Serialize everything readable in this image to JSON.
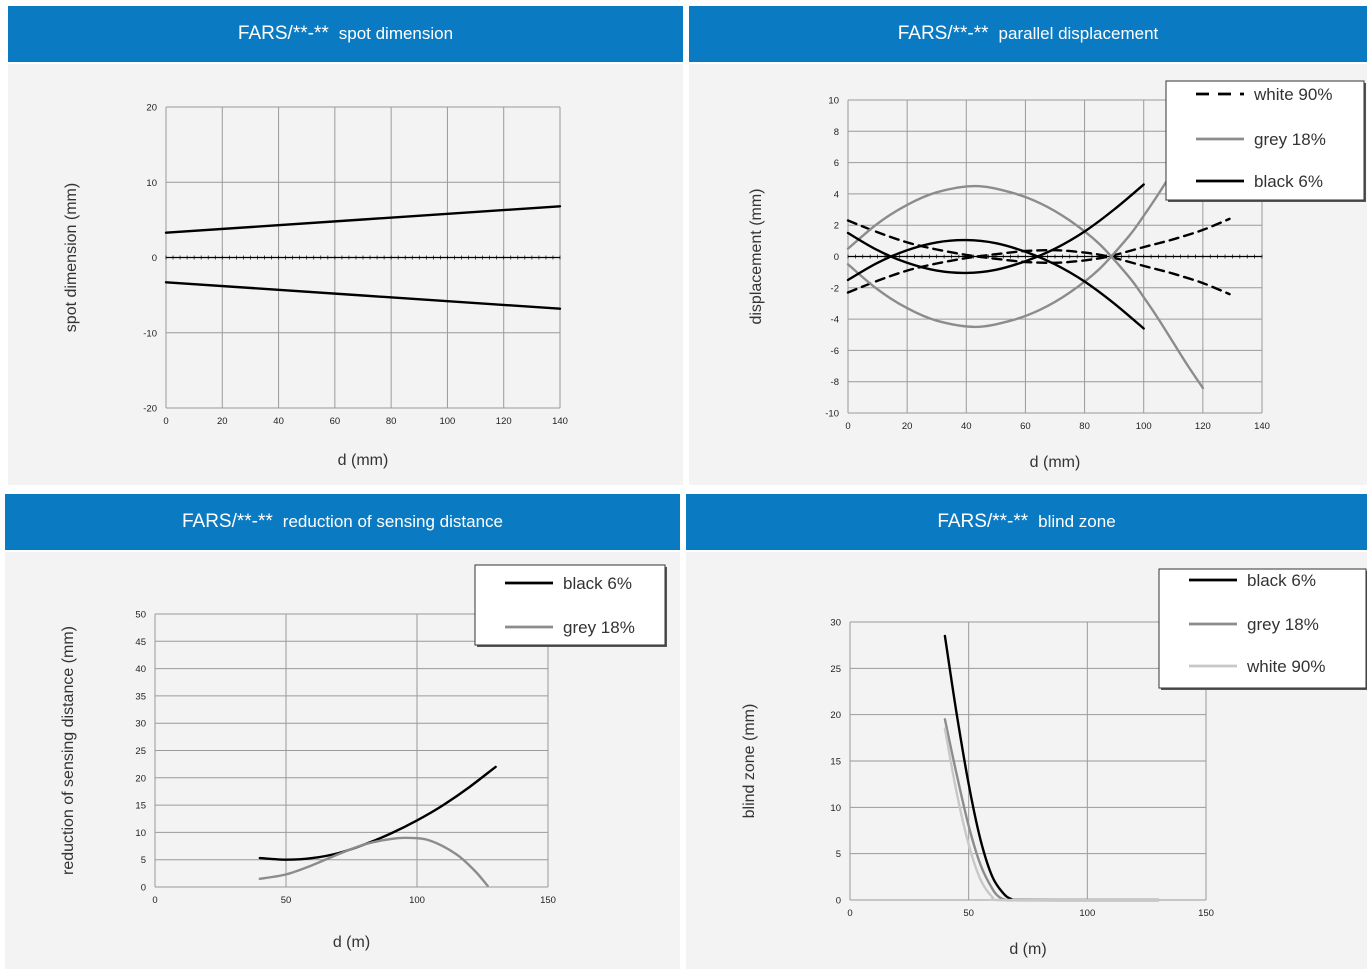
{
  "colors": {
    "header_bg": "#0a7bc2",
    "panel_bg": "#f3f3f3",
    "grid": "#9a9a9a",
    "black": "#000000",
    "grey": "#8c8c8c",
    "light_grey": "#c8c8c8"
  },
  "panels": [
    {
      "header_prefix": "FARS/**-**",
      "header_title": "spot dimension",
      "xlabel": "d (mm)",
      "ylabel": "spot dimension (mm)"
    },
    {
      "header_prefix": "FARS/**-**",
      "header_title": "parallel displacement",
      "xlabel": "d (mm)",
      "ylabel": "displacement (mm)"
    },
    {
      "header_prefix": "FARS/**-**",
      "header_title": "reduction of sensing distance",
      "xlabel": "d (m)",
      "ylabel": "reduction of sensing distance (mm)"
    },
    {
      "header_prefix": "FARS/**-**",
      "header_title": "blind zone",
      "xlabel": "d (m)",
      "ylabel": "blind zone (mm)"
    }
  ],
  "chart_data": [
    {
      "type": "line",
      "title": "spot dimension",
      "xlabel": "d (mm)",
      "ylabel": "spot dimension (mm)",
      "xlim": [
        0,
        140
      ],
      "ylim": [
        -20,
        20
      ],
      "xticks": [
        0,
        20,
        40,
        60,
        80,
        100,
        120,
        140
      ],
      "yticks": [
        -20,
        -10,
        0,
        10,
        20
      ],
      "grid": true,
      "series": [
        {
          "color": "#000000",
          "dash": false,
          "x": [
            0,
            140
          ],
          "y": [
            3.3,
            6.8
          ]
        },
        {
          "color": "#000000",
          "dash": false,
          "x": [
            0,
            140
          ],
          "y": [
            -3.3,
            -6.8
          ]
        }
      ]
    },
    {
      "type": "line",
      "title": "parallel displacement",
      "xlabel": "d (mm)",
      "ylabel": "displacement (mm)",
      "xlim": [
        0,
        140
      ],
      "ylim": [
        -10,
        10
      ],
      "xticks": [
        0,
        20,
        40,
        60,
        80,
        100,
        120,
        140
      ],
      "yticks": [
        -10,
        -8,
        -6,
        -4,
        -2,
        0,
        2,
        4,
        6,
        8,
        10
      ],
      "grid": true,
      "legend": "top-right",
      "legend_entries": [
        {
          "name": "white 90%",
          "color": "#000000",
          "dash": true
        },
        {
          "name": "grey 18%",
          "color": "#8c8c8c",
          "dash": false
        },
        {
          "name": "black 6%",
          "color": "#000000",
          "dash": false
        }
      ],
      "series": [
        {
          "name": "white 90%",
          "color": "#000000",
          "dash": true,
          "x": [
            0,
            10,
            20,
            30,
            40,
            50,
            60,
            70,
            80,
            88,
            100,
            110,
            120,
            129
          ],
          "y": [
            2.3,
            1.55,
            0.9,
            0.45,
            0.1,
            -0.15,
            -0.35,
            -0.4,
            -0.25,
            0,
            0.6,
            1.1,
            1.7,
            2.4
          ]
        },
        {
          "name": "white 90%",
          "color": "#000000",
          "dash": true,
          "x": [
            0,
            10,
            20,
            30,
            40,
            50,
            60,
            70,
            80,
            88,
            100,
            110,
            120,
            129
          ],
          "y": [
            -2.3,
            -1.55,
            -0.9,
            -0.45,
            -0.1,
            0.15,
            0.35,
            0.4,
            0.25,
            0,
            -0.6,
            -1.1,
            -1.7,
            -2.4
          ]
        },
        {
          "name": "grey 18%",
          "color": "#8c8c8c",
          "dash": false,
          "x": [
            0,
            10,
            20,
            30,
            43,
            55,
            65,
            75,
            85,
            95,
            100,
            105,
            110,
            115,
            120
          ],
          "y": [
            0.5,
            2.1,
            3.3,
            4.1,
            4.5,
            4.1,
            3.4,
            2.3,
            0.8,
            -1.3,
            -2.6,
            -4.0,
            -5.5,
            -7.0,
            -8.4
          ]
        },
        {
          "name": "grey 18%",
          "color": "#8c8c8c",
          "dash": false,
          "x": [
            0,
            10,
            20,
            30,
            43,
            55,
            65,
            75,
            85,
            95,
            100,
            105,
            110,
            115
          ],
          "y": [
            -0.5,
            -2.1,
            -3.3,
            -4.1,
            -4.5,
            -4.1,
            -3.4,
            -2.3,
            -0.8,
            1.3,
            2.6,
            4.0,
            5.5,
            7.0
          ]
        },
        {
          "name": "black 6%",
          "color": "#000000",
          "dash": false,
          "x": [
            0,
            10,
            20,
            30,
            40,
            50,
            60,
            70,
            80,
            90,
            100
          ],
          "y": [
            1.5,
            0.4,
            -0.4,
            -0.9,
            -1.05,
            -0.85,
            -0.3,
            0.5,
            1.6,
            3.0,
            4.6
          ]
        },
        {
          "name": "black 6%",
          "color": "#000000",
          "dash": false,
          "x": [
            0,
            10,
            20,
            30,
            40,
            50,
            60,
            70,
            80,
            90,
            100
          ],
          "y": [
            -1.5,
            -0.4,
            0.4,
            0.9,
            1.05,
            0.85,
            0.3,
            -0.5,
            -1.6,
            -3.0,
            -4.6
          ]
        }
      ]
    },
    {
      "type": "line",
      "title": "reduction of sensing distance",
      "xlabel": "d (m)",
      "ylabel": "reduction of sensing distance (mm)",
      "xlim": [
        0,
        150
      ],
      "ylim": [
        0,
        50
      ],
      "xticks": [
        0,
        50,
        100,
        150
      ],
      "yticks": [
        0,
        5,
        10,
        15,
        20,
        25,
        30,
        35,
        40,
        45,
        50
      ],
      "grid": true,
      "legend": "top-right",
      "legend_entries": [
        {
          "name": "black 6%",
          "color": "#000000",
          "dash": false
        },
        {
          "name": "grey 18%",
          "color": "#8c8c8c",
          "dash": false
        }
      ],
      "series": [
        {
          "name": "black 6%",
          "color": "#000000",
          "dash": false,
          "x": [
            40,
            50,
            60,
            70,
            80,
            90,
            100,
            110,
            120,
            130
          ],
          "y": [
            5.3,
            5.0,
            5.3,
            6.2,
            7.8,
            9.8,
            12.2,
            15.0,
            18.3,
            22.0
          ]
        },
        {
          "name": "grey 18%",
          "color": "#8c8c8c",
          "dash": false,
          "x": [
            40,
            50,
            60,
            70,
            80,
            90,
            97,
            105,
            115,
            122,
            127
          ],
          "y": [
            1.5,
            2.3,
            4.0,
            6.0,
            7.8,
            8.8,
            9.0,
            8.5,
            6.0,
            3.0,
            0.2
          ]
        }
      ]
    },
    {
      "type": "line",
      "title": "blind zone",
      "xlabel": "d (m)",
      "ylabel": "blind zone (mm)",
      "xlim": [
        0,
        150
      ],
      "ylim": [
        0,
        30
      ],
      "xticks": [
        0,
        50,
        100,
        150
      ],
      "yticks": [
        0,
        5,
        10,
        15,
        20,
        25,
        30
      ],
      "grid": true,
      "legend": "top-right",
      "legend_entries": [
        {
          "name": "black 6%",
          "color": "#000000",
          "dash": false
        },
        {
          "name": "grey 18%",
          "color": "#8c8c8c",
          "dash": false
        },
        {
          "name": "white 90%",
          "color": "#c8c8c8",
          "dash": false
        }
      ],
      "series": [
        {
          "name": "black 6%",
          "color": "#000000",
          "dash": false,
          "x": [
            40,
            45,
            50,
            55,
            60,
            65,
            68,
            70,
            100,
            130
          ],
          "y": [
            28.5,
            20.0,
            12.5,
            6.5,
            2.5,
            0.6,
            0.1,
            0,
            0,
            0
          ]
        },
        {
          "name": "grey 18%",
          "color": "#8c8c8c",
          "dash": false,
          "x": [
            40,
            45,
            50,
            55,
            60,
            63,
            66,
            70,
            100,
            130
          ],
          "y": [
            19.5,
            13.5,
            8.0,
            3.8,
            1.2,
            0.3,
            0,
            0,
            0,
            0
          ]
        },
        {
          "name": "white 90%",
          "color": "#c8c8c8",
          "dash": false,
          "x": [
            40,
            45,
            50,
            55,
            60,
            63,
            100,
            130
          ],
          "y": [
            18.5,
            11.5,
            6.0,
            2.2,
            0.3,
            0,
            0,
            0
          ]
        }
      ]
    }
  ]
}
